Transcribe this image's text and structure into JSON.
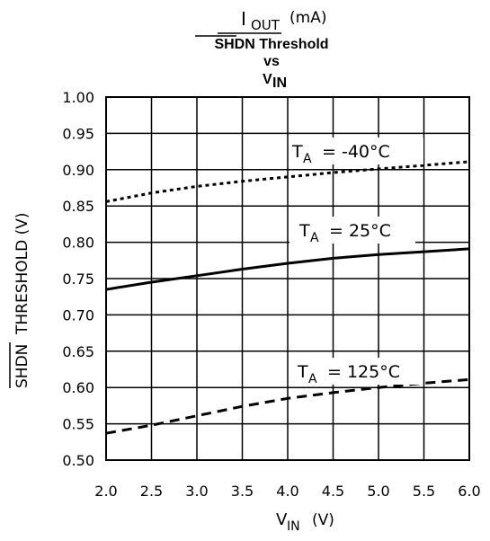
{
  "chart_data": {
    "type": "line",
    "title_top": {
      "base": "I",
      "sub": "OUT",
      "unit": "(mA)"
    },
    "title_lines": [
      "SHDN Threshold",
      "vs"
    ],
    "title_vin": {
      "base": "V",
      "sub": "IN"
    },
    "ylabel": {
      "overlined": "SHDN",
      "rest": "THRESHOLD (V)"
    },
    "xlabel": {
      "base": "V",
      "sub": "IN",
      "unit": "(V)"
    },
    "xlim": [
      2.0,
      6.0
    ],
    "ylim": [
      0.5,
      1.0
    ],
    "x_ticks": [
      "2.0",
      "2.5",
      "3.0",
      "3.5",
      "4.0",
      "4.5",
      "5.0",
      "5.5",
      "6.0"
    ],
    "y_ticks": [
      "1.00",
      "0.95",
      "0.90",
      "0.85",
      "0.80",
      "0.75",
      "0.70",
      "0.65",
      "0.60",
      "0.55",
      "0.50"
    ],
    "grid": true,
    "series": [
      {
        "label_prefix": "T",
        "label_sub": "A",
        "label_value": "= -40°C",
        "style": "dotted",
        "x": [
          2.0,
          2.5,
          3.0,
          3.5,
          4.0,
          4.5,
          5.0,
          5.5,
          6.0
        ],
        "y": [
          0.856,
          0.868,
          0.877,
          0.884,
          0.89,
          0.896,
          0.901,
          0.906,
          0.911
        ]
      },
      {
        "label_prefix": "T",
        "label_sub": "A",
        "label_value": "= 25°C",
        "style": "solid",
        "x": [
          2.0,
          2.5,
          3.0,
          3.5,
          4.0,
          4.5,
          5.0,
          5.5,
          6.0
        ],
        "y": [
          0.735,
          0.745,
          0.754,
          0.763,
          0.771,
          0.778,
          0.783,
          0.787,
          0.791
        ]
      },
      {
        "label_prefix": "T",
        "label_sub": "A",
        "label_value": "= 125°C",
        "style": "dashed",
        "x": [
          2.0,
          2.5,
          3.0,
          3.5,
          4.0,
          4.5,
          5.0,
          5.5,
          6.0
        ],
        "y": [
          0.537,
          0.548,
          0.561,
          0.574,
          0.585,
          0.593,
          0.6,
          0.606,
          0.611
        ]
      }
    ]
  }
}
